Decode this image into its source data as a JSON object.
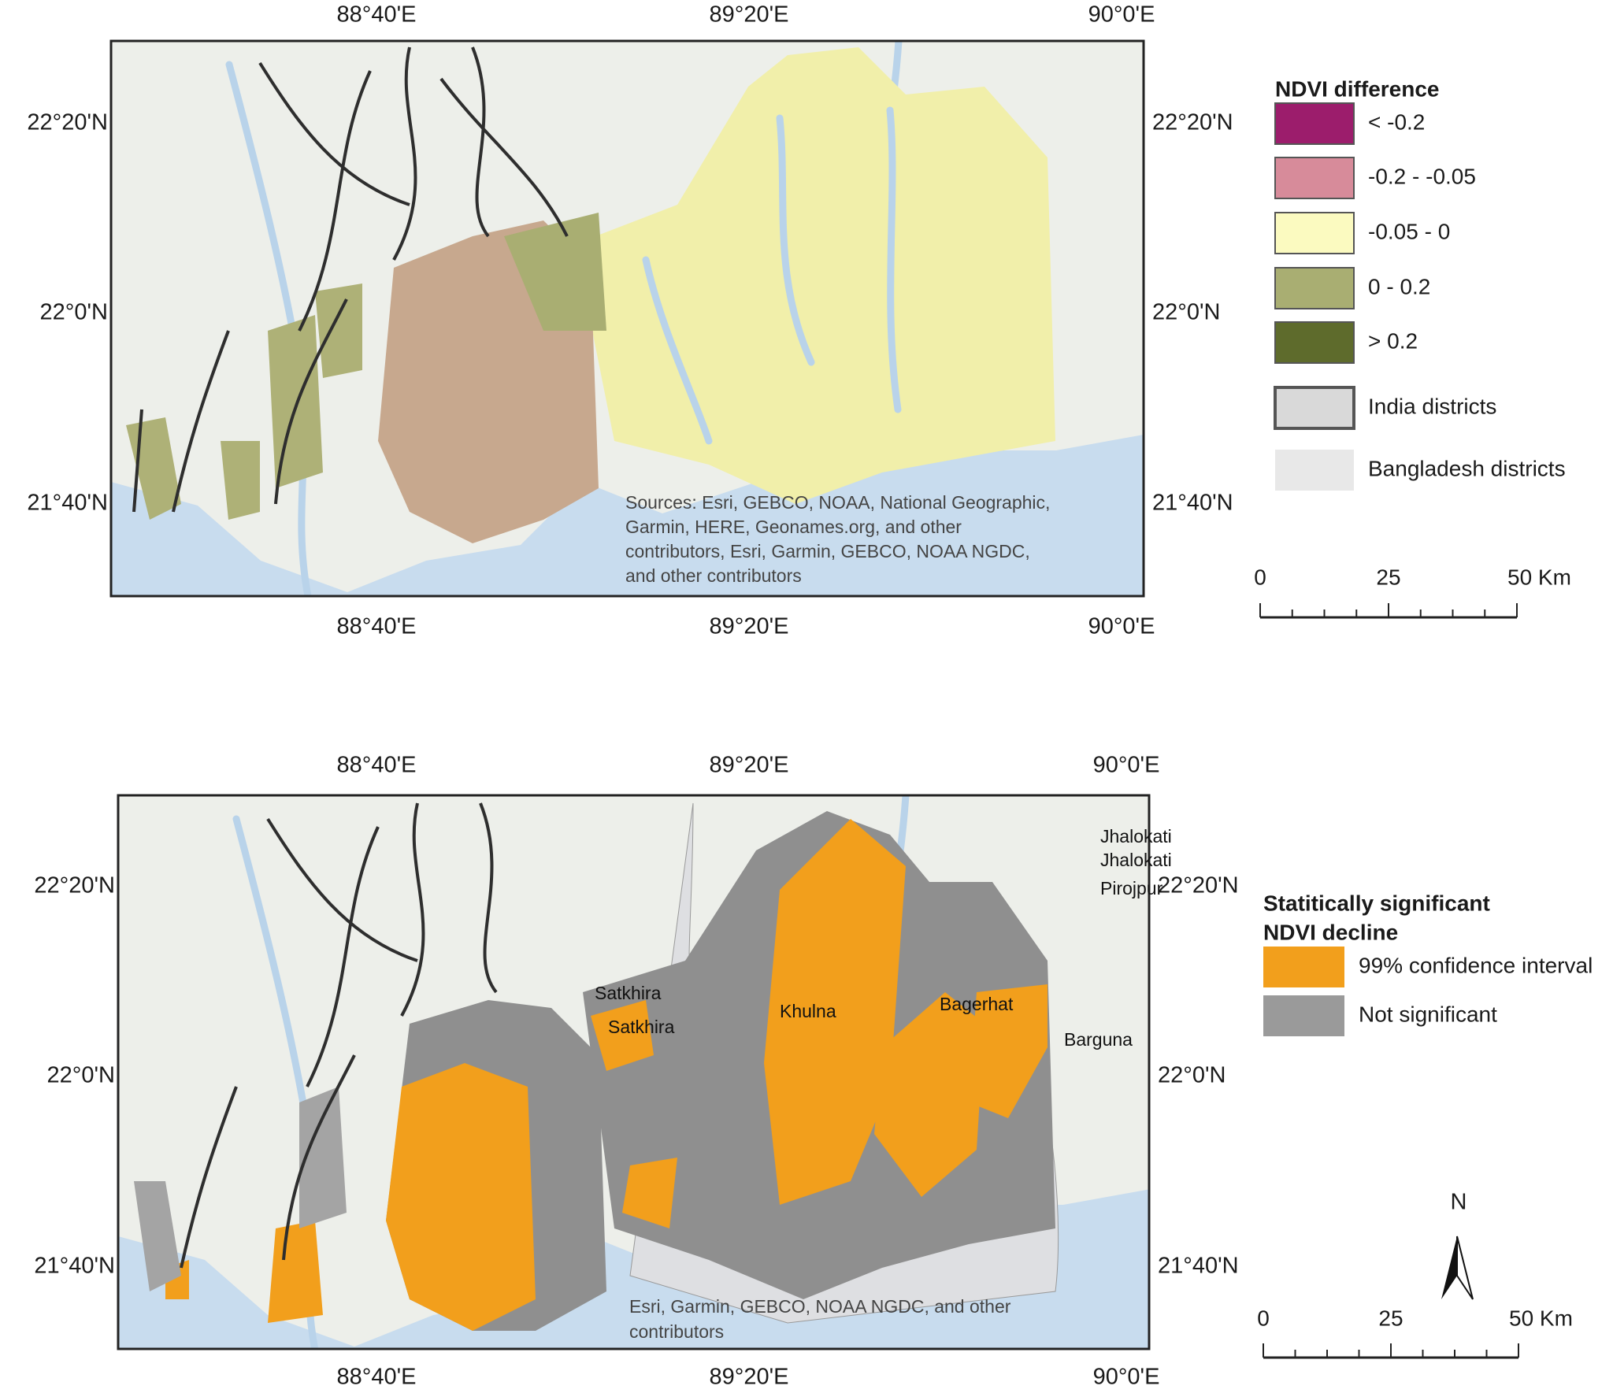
{
  "maps": [
    {
      "top_labels": [
        "88°40'E",
        "89°20'E",
        "90°0'E"
      ],
      "bottom_labels": [
        "88°40'E",
        "89°20'E",
        "90°0'E"
      ],
      "left_labels": [
        "22°20'N",
        "22°0'N",
        "21°40'N"
      ],
      "right_labels": [
        "22°20'N",
        "22°0'N",
        "21°40'N"
      ],
      "attribution": [
        "Sources: Esri, GEBCO, NOAA, National Geographic,",
        "Garmin, HERE, Geonames.org, and other",
        "contributors, Esri, Garmin, GEBCO, NOAA NGDC,",
        "and other contributors"
      ],
      "legend": {
        "title": [
          "NDVI difference"
        ],
        "items": [
          {
            "label": "< -0.2",
            "color": "#9c1d6c"
          },
          {
            "label": "-0.2 - -0.05",
            "color": "#d78b9a"
          },
          {
            "label": "-0.05 - 0",
            "color": "#fbfac0"
          },
          {
            "label": "0 - 0.2",
            "color": "#a9ae72"
          },
          {
            "label": "> 0.2",
            "color": "#5e6b2c"
          },
          {
            "label": "India districts",
            "color": "#d9d9d9"
          },
          {
            "label": "Bangladesh districts",
            "color": "#e8e8e8"
          }
        ]
      },
      "scale": [
        "0",
        "25",
        "50 Km"
      ]
    },
    {
      "top_labels": [
        "88°40'E",
        "89°20'E",
        "90°0'E"
      ],
      "bottom_labels": [
        "88°40'E",
        "89°20'E",
        "90°0'E"
      ],
      "left_labels": [
        "22°20'N",
        "22°0'N",
        "21°40'N"
      ],
      "right_labels": [
        "22°20'N",
        "22°0'N",
        "21°40'N"
      ],
      "attribution": [
        "Esri, Garmin, GEBCO, NOAA NGDC, and other",
        "contributors"
      ],
      "places": [
        "Jhalokati",
        "Jhalokati",
        "Pirojpur",
        "Satkhira",
        "Satkhira",
        "Khulna",
        "Bagerhat",
        "Barguna"
      ],
      "legend": {
        "title": [
          "Statitically significant",
          "NDVI decline"
        ],
        "items": [
          {
            "label": "99% confidence interval",
            "color": "#f29f1c"
          },
          {
            "label": "Not significant",
            "color": "#9a9a9a"
          }
        ]
      },
      "scale": [
        "0",
        "25",
        "50 Km"
      ],
      "north": "N"
    }
  ]
}
